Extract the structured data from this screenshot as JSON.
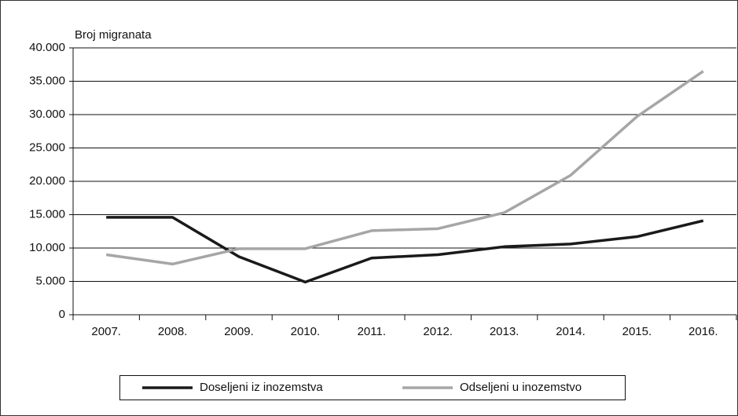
{
  "chart_data": {
    "type": "line",
    "y_axis_label": "Broj migranata",
    "categories": [
      "2007.",
      "2008.",
      "2009.",
      "2010.",
      "2011.",
      "2012.",
      "2013.",
      "2014.",
      "2015.",
      "2016."
    ],
    "series": [
      {
        "name": "Doseljeni iz inozemstva",
        "color": "#1a1a1a",
        "values": [
          14600,
          14600,
          8700,
          4900,
          8500,
          9000,
          10200,
          10600,
          11700,
          14100
        ]
      },
      {
        "name": "Odseljeni u inozemstvo",
        "color": "#a6a6a6",
        "values": [
          9000,
          7600,
          9900,
          9900,
          12600,
          12900,
          15300,
          20900,
          29700,
          36500
        ]
      }
    ],
    "ylim": [
      0,
      40000
    ],
    "yticks": [
      0,
      {
        "value": 5000,
        "label": "5.000"
      },
      {
        "value": 10000,
        "label": "10.000"
      },
      {
        "value": 15000,
        "label": "15.000"
      },
      {
        "value": 20000,
        "label": "20.000"
      },
      {
        "value": 25000,
        "label": "25.000"
      },
      {
        "value": 30000,
        "label": "30.000"
      },
      {
        "value": 35000,
        "label": "35.000"
      },
      {
        "value": 40000,
        "label": "40.000"
      }
    ],
    "grid": true
  }
}
